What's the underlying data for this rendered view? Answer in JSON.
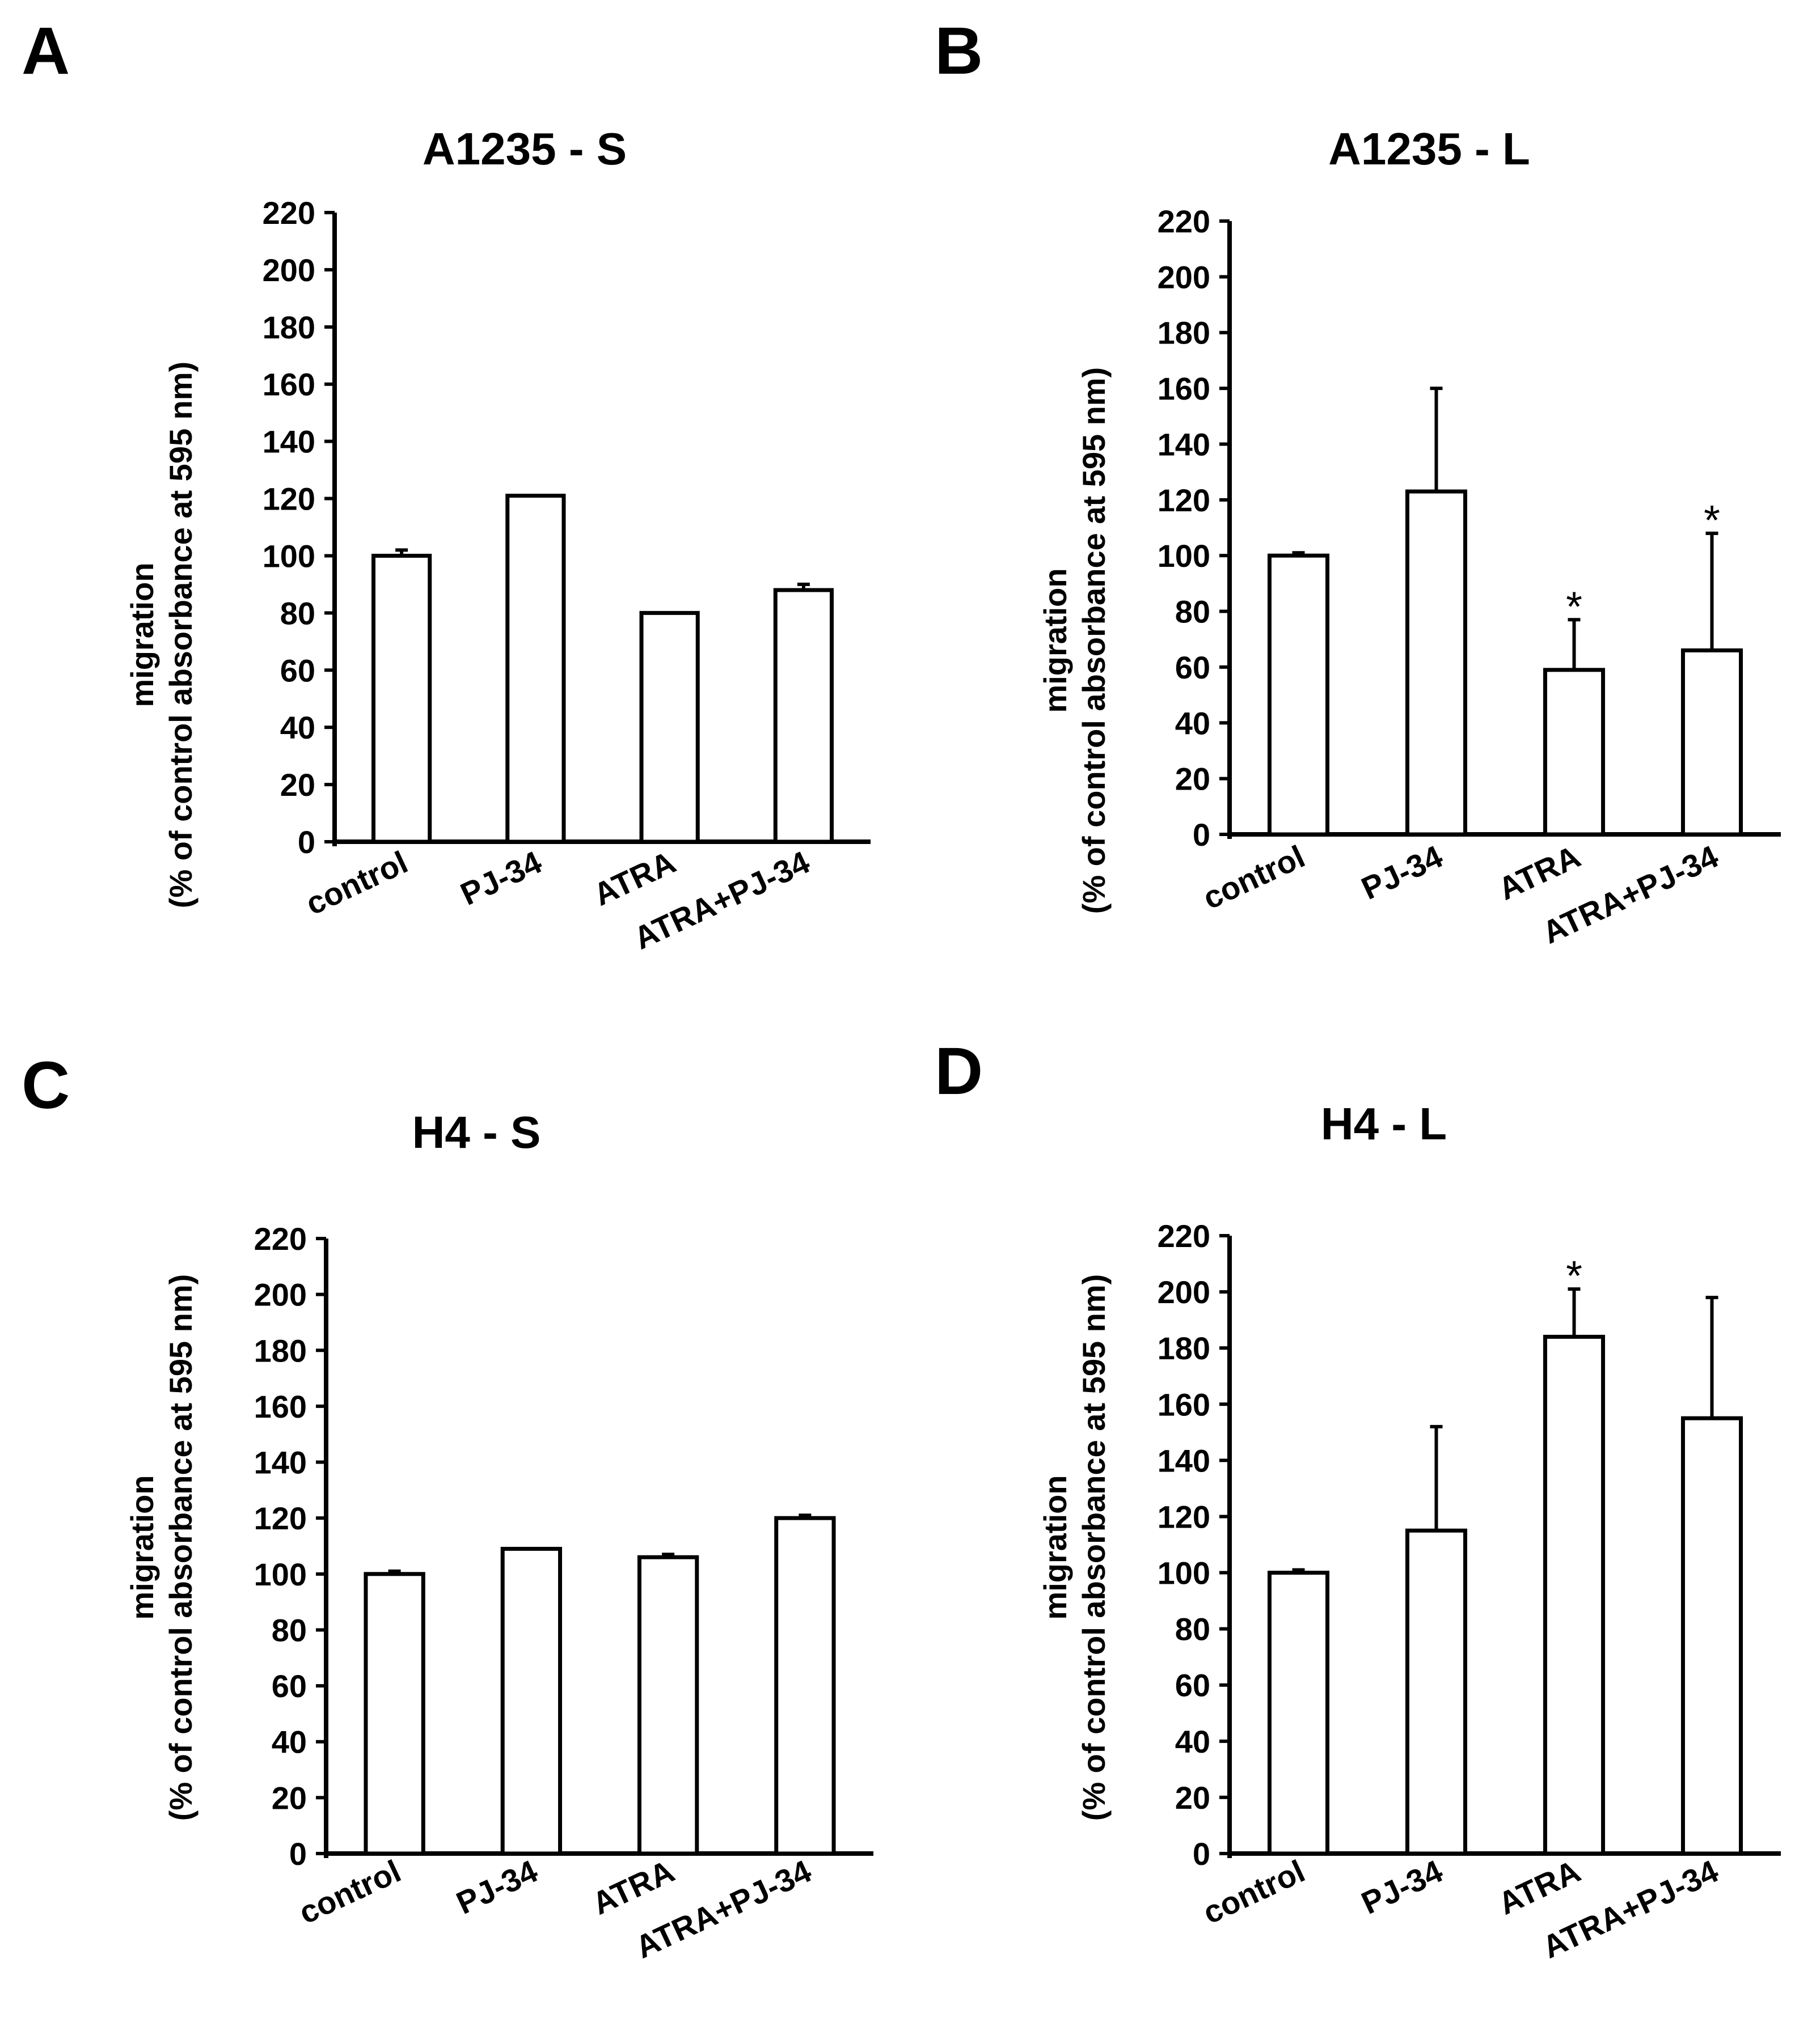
{
  "figure_style": {
    "bar_fill": "#ffffff",
    "stroke": "#000000"
  },
  "chart_data": [
    {
      "panel": "A",
      "type": "bar",
      "title": "A1235 - S",
      "ylabel_lines": [
        "migration",
        "(% of control absorbance at 595 nm)"
      ],
      "xlabel": "",
      "categories": [
        "control",
        "PJ-34",
        "ATRA",
        "ATRA+PJ-34"
      ],
      "values": [
        100,
        121,
        80,
        88
      ],
      "errors": [
        2,
        0,
        0,
        2
      ],
      "significant": [
        false,
        false,
        false,
        false
      ],
      "ylim": [
        0,
        220
      ],
      "yticks": [
        0,
        20,
        40,
        60,
        80,
        100,
        120,
        140,
        160,
        180,
        200,
        220
      ],
      "grid": false,
      "legend": "none"
    },
    {
      "panel": "B",
      "type": "bar",
      "title": "A1235 - L",
      "ylabel_lines": [
        "migration",
        "(% of control absorbance at 595 nm)"
      ],
      "xlabel": "",
      "categories": [
        "control",
        "PJ-34",
        "ATRA",
        "ATRA+PJ-34"
      ],
      "values": [
        100,
        123,
        59,
        66
      ],
      "errors": [
        1,
        37,
        18,
        42
      ],
      "significant": [
        false,
        false,
        true,
        true
      ],
      "significance_symbol": "*",
      "ylim": [
        0,
        220
      ],
      "yticks": [
        0,
        20,
        40,
        60,
        80,
        100,
        120,
        140,
        160,
        180,
        200,
        220
      ],
      "grid": false,
      "legend": "none"
    },
    {
      "panel": "C",
      "type": "bar",
      "title": "H4 - S",
      "ylabel_lines": [
        "migration",
        "(% of control absorbance at 595 nm)"
      ],
      "xlabel": "",
      "categories": [
        "control",
        "PJ-34",
        "ATRA",
        "ATRA+PJ-34"
      ],
      "values": [
        100,
        109,
        106,
        120
      ],
      "errors": [
        1,
        0,
        1,
        1
      ],
      "significant": [
        false,
        false,
        false,
        false
      ],
      "ylim": [
        0,
        220
      ],
      "yticks": [
        0,
        20,
        40,
        60,
        80,
        100,
        120,
        140,
        160,
        180,
        200,
        220
      ],
      "grid": false,
      "legend": "none"
    },
    {
      "panel": "D",
      "type": "bar",
      "title": "H4 - L",
      "ylabel_lines": [
        "migration",
        "(% of control absorbance at 595 nm)"
      ],
      "xlabel": "",
      "categories": [
        "control",
        "PJ-34",
        "ATRA",
        "ATRA+PJ-34"
      ],
      "values": [
        100,
        115,
        184,
        155
      ],
      "errors": [
        1,
        37,
        17,
        43
      ],
      "significant": [
        false,
        false,
        true,
        false
      ],
      "significance_symbol": "*",
      "ylim": [
        0,
        220
      ],
      "yticks": [
        0,
        20,
        40,
        60,
        80,
        100,
        120,
        140,
        160,
        180,
        200,
        220
      ],
      "grid": false,
      "legend": "none"
    }
  ]
}
